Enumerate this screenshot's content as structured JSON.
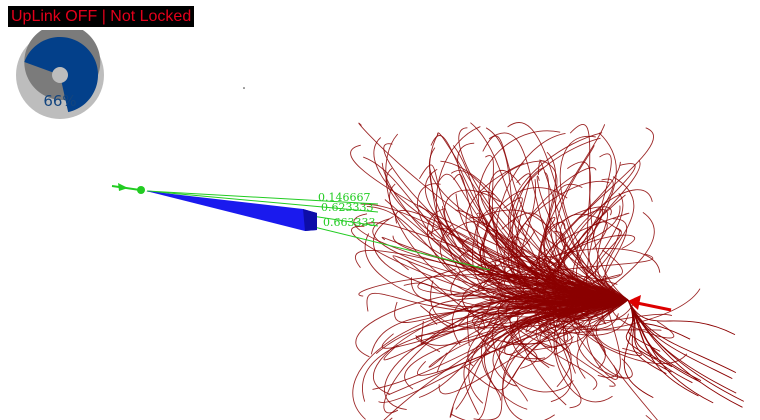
{
  "status": {
    "text": "UpLink OFF | Not Locked",
    "text_color": "#e3001b",
    "bg_color": "#000000"
  },
  "gauge": {
    "percent": 66,
    "label": "66%",
    "fill_color": "#03408a",
    "remainder_color": "#7b7b7b",
    "ring_color": "#bdbdbd"
  },
  "scene": {
    "distance_labels": [
      "0.146667",
      "0.623333",
      "0.663333"
    ],
    "ownship_color": "#1a1aee",
    "contact_color": "#8b0000",
    "arrow_color": "#dd0000",
    "link_color": "#22cc22"
  }
}
